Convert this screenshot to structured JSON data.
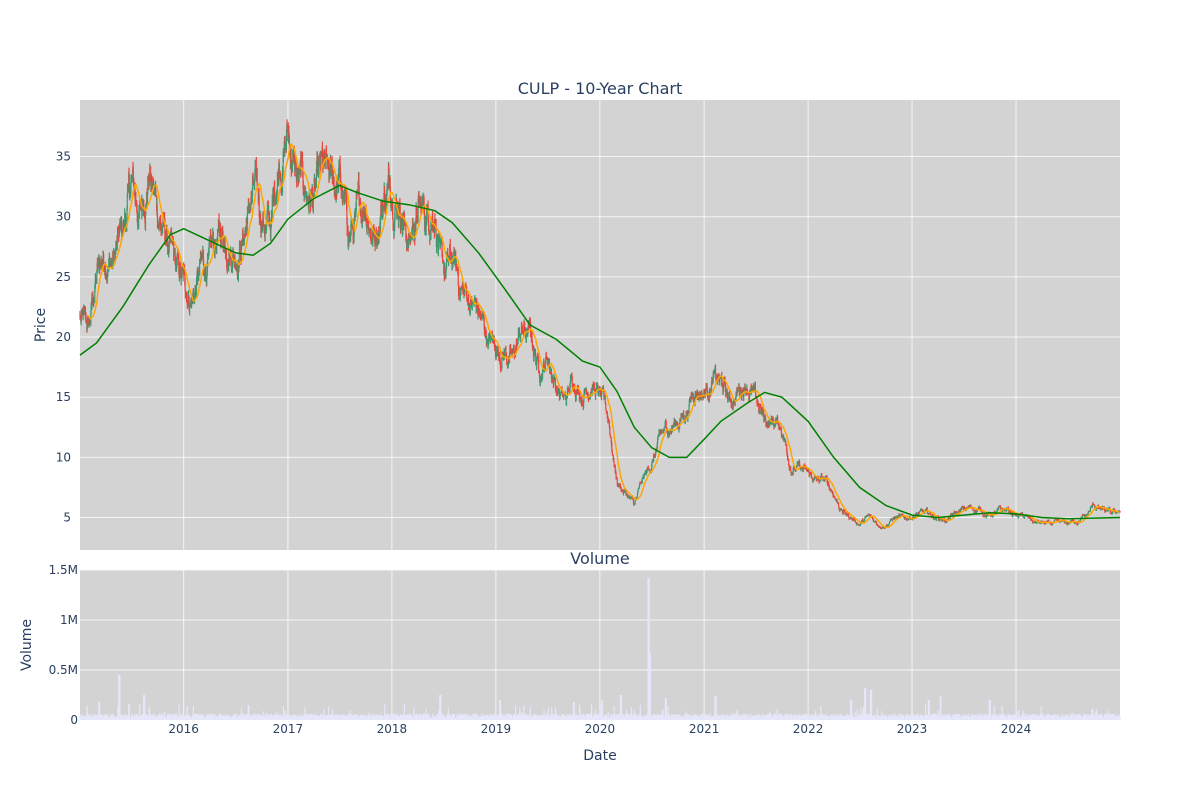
{
  "chart_data": [
    {
      "type": "candlestick",
      "title": "CULP - 10-Year Chart",
      "xlabel": "",
      "ylabel": "Price",
      "x_range": [
        "2015-01-02",
        "2024-12-31"
      ],
      "ylim": [
        2.3,
        39.7
      ],
      "grid": true,
      "background": "#d3d3d3",
      "x_ticks": [
        "2016",
        "2017",
        "2018",
        "2019",
        "2020",
        "2021",
        "2022",
        "2023",
        "2024"
      ],
      "y_ticks": [
        5,
        10,
        15,
        20,
        25,
        30,
        35
      ],
      "up_color": "#3d9970",
      "down_color": "#e8453c",
      "ma_short_color": "#ffa500",
      "ma_long_color": "#008000",
      "price_path": [
        [
          "2015-01-02",
          21.5
        ],
        [
          "2015-02-01",
          20.3
        ],
        [
          "2015-03-01",
          25.0
        ],
        [
          "2015-04-01",
          27.0
        ],
        [
          "2015-05-01",
          26.5
        ],
        [
          "2015-06-01",
          28.5
        ],
        [
          "2015-07-01",
          32.5
        ],
        [
          "2015-08-01",
          30.0
        ],
        [
          "2015-09-01",
          34.0
        ],
        [
          "2015-10-01",
          30.5
        ],
        [
          "2015-11-01",
          28.0
        ],
        [
          "2015-12-01",
          25.5
        ],
        [
          "2016-01-01",
          24.0
        ],
        [
          "2016-02-01",
          23.5
        ],
        [
          "2016-03-01",
          25.5
        ],
        [
          "2016-04-01",
          26.0
        ],
        [
          "2016-05-01",
          28.0
        ],
        [
          "2016-06-01",
          28.5
        ],
        [
          "2016-07-01",
          27.5
        ],
        [
          "2016-08-01",
          29.0
        ],
        [
          "2016-09-01",
          32.0
        ],
        [
          "2016-10-01",
          30.0
        ],
        [
          "2016-11-01",
          29.0
        ],
        [
          "2016-12-01",
          35.0
        ],
        [
          "2017-01-01",
          37.0
        ],
        [
          "2017-02-01",
          33.0
        ],
        [
          "2017-03-01",
          32.0
        ],
        [
          "2017-04-01",
          31.5
        ],
        [
          "2017-05-01",
          33.0
        ],
        [
          "2017-06-01",
          32.0
        ],
        [
          "2017-07-01",
          33.0
        ],
        [
          "2017-08-01",
          28.5
        ],
        [
          "2017-09-01",
          29.5
        ],
        [
          "2017-10-01",
          31.5
        ],
        [
          "2017-11-01",
          28.5
        ],
        [
          "2017-12-01",
          32.0
        ],
        [
          "2018-01-01",
          33.0
        ],
        [
          "2018-02-01",
          31.5
        ],
        [
          "2018-03-01",
          28.0
        ],
        [
          "2018-04-01",
          30.5
        ],
        [
          "2018-05-01",
          30.0
        ],
        [
          "2018-06-01",
          31.5
        ],
        [
          "2018-06-20",
          26.0
        ],
        [
          "2018-07-01",
          25.0
        ],
        [
          "2018-08-01",
          26.0
        ],
        [
          "2018-09-01",
          24.0
        ],
        [
          "2018-10-01",
          23.0
        ],
        [
          "2018-11-01",
          22.0
        ],
        [
          "2018-12-01",
          20.0
        ],
        [
          "2019-01-01",
          19.0
        ],
        [
          "2019-02-01",
          19.0
        ],
        [
          "2019-03-01",
          18.0
        ],
        [
          "2019-04-01",
          20.5
        ],
        [
          "2019-05-01",
          20.0
        ],
        [
          "2019-06-01",
          17.5
        ],
        [
          "2019-07-01",
          18.5
        ],
        [
          "2019-08-01",
          16.0
        ],
        [
          "2019-09-01",
          14.5
        ],
        [
          "2019-10-01",
          16.5
        ],
        [
          "2019-11-01",
          15.5
        ],
        [
          "2019-12-01",
          16.5
        ],
        [
          "2020-01-01",
          15.0
        ],
        [
          "2020-02-01",
          13.0
        ],
        [
          "2020-03-01",
          8.0
        ],
        [
          "2020-04-01",
          7.0
        ],
        [
          "2020-05-01",
          6.0
        ],
        [
          "2020-06-01",
          8.0
        ],
        [
          "2020-07-01",
          9.5
        ],
        [
          "2020-08-01",
          11.5
        ],
        [
          "2020-09-01",
          12.5
        ],
        [
          "2020-10-01",
          13.0
        ],
        [
          "2020-11-01",
          14.0
        ],
        [
          "2020-12-01",
          16.0
        ],
        [
          "2021-01-01",
          15.5
        ],
        [
          "2021-02-01",
          16.5
        ],
        [
          "2021-03-01",
          16.0
        ],
        [
          "2021-04-01",
          14.5
        ],
        [
          "2021-05-01",
          15.5
        ],
        [
          "2021-06-01",
          16.5
        ],
        [
          "2021-07-01",
          14.5
        ],
        [
          "2021-08-01",
          13.0
        ],
        [
          "2021-09-01",
          13.0
        ],
        [
          "2021-10-01",
          12.5
        ],
        [
          "2021-11-01",
          9.5
        ],
        [
          "2021-12-01",
          9.0
        ],
        [
          "2022-01-01",
          8.5
        ],
        [
          "2022-02-01",
          8.0
        ],
        [
          "2022-03-01",
          8.0
        ],
        [
          "2022-04-01",
          7.0
        ],
        [
          "2022-05-01",
          5.5
        ],
        [
          "2022-06-01",
          5.0
        ],
        [
          "2022-07-01",
          4.5
        ],
        [
          "2022-08-01",
          5.0
        ],
        [
          "2022-09-01",
          4.5
        ],
        [
          "2022-10-01",
          4.5
        ],
        [
          "2022-11-01",
          5.0
        ],
        [
          "2022-12-01",
          4.8
        ],
        [
          "2023-01-01",
          5.2
        ],
        [
          "2023-02-01",
          5.3
        ],
        [
          "2023-03-01",
          5.2
        ],
        [
          "2023-04-01",
          5.0
        ],
        [
          "2023-05-01",
          4.8
        ],
        [
          "2023-06-01",
          5.2
        ],
        [
          "2023-07-01",
          5.6
        ],
        [
          "2023-08-01",
          5.8
        ],
        [
          "2023-09-01",
          5.6
        ],
        [
          "2023-10-01",
          5.2
        ],
        [
          "2023-11-01",
          5.4
        ],
        [
          "2023-12-01",
          5.6
        ],
        [
          "2024-01-01",
          5.2
        ],
        [
          "2024-02-01",
          5.0
        ],
        [
          "2024-03-01",
          4.6
        ],
        [
          "2024-04-01",
          4.5
        ],
        [
          "2024-05-01",
          4.4
        ],
        [
          "2024-06-01",
          4.4
        ],
        [
          "2024-07-01",
          4.5
        ],
        [
          "2024-08-01",
          4.8
        ],
        [
          "2024-09-01",
          5.0
        ],
        [
          "2024-10-01",
          6.0
        ],
        [
          "2024-11-01",
          5.5
        ],
        [
          "2024-12-01",
          5.2
        ],
        [
          "2024-12-31",
          5.6
        ]
      ],
      "ma_long": [
        [
          "2015-01-02",
          18.5
        ],
        [
          "2015-03-01",
          19.5
        ],
        [
          "2015-06-01",
          22.5
        ],
        [
          "2015-09-01",
          26.0
        ],
        [
          "2015-11-15",
          28.5
        ],
        [
          "2016-01-01",
          29.0
        ],
        [
          "2016-04-01",
          28.0
        ],
        [
          "2016-07-01",
          27.0
        ],
        [
          "2016-09-01",
          26.8
        ],
        [
          "2016-11-01",
          27.8
        ],
        [
          "2017-01-01",
          29.8
        ],
        [
          "2017-04-01",
          31.5
        ],
        [
          "2017-07-01",
          32.6
        ],
        [
          "2017-09-01",
          32.0
        ],
        [
          "2017-12-01",
          31.3
        ],
        [
          "2018-03-01",
          31.0
        ],
        [
          "2018-06-01",
          30.5
        ],
        [
          "2018-08-01",
          29.5
        ],
        [
          "2018-11-01",
          27.0
        ],
        [
          "2019-02-01",
          24.0
        ],
        [
          "2019-05-01",
          21.0
        ],
        [
          "2019-08-01",
          19.8
        ],
        [
          "2019-11-01",
          18.0
        ],
        [
          "2020-01-01",
          17.5
        ],
        [
          "2020-03-01",
          15.5
        ],
        [
          "2020-05-01",
          12.5
        ],
        [
          "2020-07-01",
          10.8
        ],
        [
          "2020-09-01",
          10.0
        ],
        [
          "2020-11-01",
          10.0
        ],
        [
          "2021-01-01",
          11.5
        ],
        [
          "2021-03-01",
          13.0
        ],
        [
          "2021-06-01",
          14.5
        ],
        [
          "2021-08-01",
          15.4
        ],
        [
          "2021-10-01",
          15.0
        ],
        [
          "2022-01-01",
          13.0
        ],
        [
          "2022-04-01",
          10.0
        ],
        [
          "2022-07-01",
          7.5
        ],
        [
          "2022-10-01",
          6.0
        ],
        [
          "2023-01-01",
          5.2
        ],
        [
          "2023-04-01",
          5.0
        ],
        [
          "2023-07-01",
          5.2
        ],
        [
          "2023-10-01",
          5.4
        ],
        [
          "2024-01-01",
          5.3
        ],
        [
          "2024-04-01",
          5.0
        ],
        [
          "2024-07-01",
          4.9
        ],
        [
          "2024-12-31",
          5.0
        ]
      ]
    },
    {
      "type": "bar",
      "title": "Volume",
      "xlabel": "Date",
      "ylabel": "Volume",
      "ylim": [
        0,
        1500000
      ],
      "x_range": [
        "2015-01-02",
        "2024-12-31"
      ],
      "grid": true,
      "background": "#d3d3d3",
      "bar_color": "#e6e6fa",
      "x_ticks": [
        "2016",
        "2017",
        "2018",
        "2019",
        "2020",
        "2021",
        "2022",
        "2023",
        "2024"
      ],
      "y_ticks": [
        "0",
        "0.5M",
        "1M",
        "1.5M"
      ],
      "y_tick_values": [
        0,
        500000,
        1000000,
        1500000
      ],
      "baseline_volume": 40000,
      "spikes": [
        [
          "2015-05-20",
          450000
        ],
        [
          "2015-03-10",
          180000
        ],
        [
          "2015-08-15",
          250000
        ],
        [
          "2016-08-15",
          150000
        ],
        [
          "2018-06-20",
          250000
        ],
        [
          "2019-01-15",
          200000
        ],
        [
          "2019-10-01",
          180000
        ],
        [
          "2020-01-10",
          200000
        ],
        [
          "2020-03-15",
          250000
        ],
        [
          "2020-06-20",
          1420000
        ],
        [
          "2020-06-25",
          680000
        ],
        [
          "2020-08-20",
          220000
        ],
        [
          "2021-02-10",
          240000
        ],
        [
          "2022-06-01",
          200000
        ],
        [
          "2022-07-20",
          320000
        ],
        [
          "2022-08-10",
          300000
        ],
        [
          "2023-03-01",
          200000
        ],
        [
          "2023-04-10",
          240000
        ],
        [
          "2023-10-01",
          200000
        ],
        [
          "2024-09-25",
          110000
        ]
      ]
    }
  ]
}
